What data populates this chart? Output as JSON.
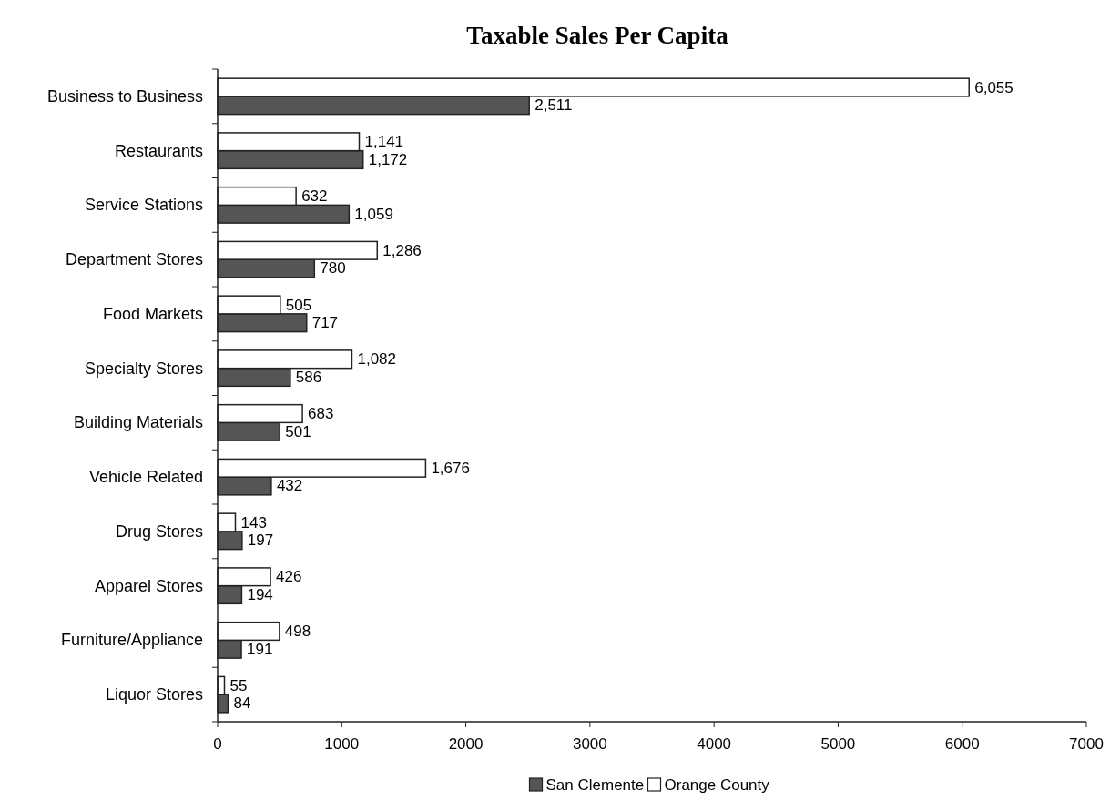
{
  "chart_data": {
    "type": "bar",
    "orientation": "horizontal",
    "title": "Taxable Sales Per Capita",
    "categories": [
      "Business to Business",
      "Restaurants",
      "Service Stations",
      "Department Stores",
      "Food Markets",
      "Specialty Stores",
      "Building Materials",
      "Vehicle Related",
      "Drug Stores",
      "Apparel Stores",
      "Furniture/Appliance",
      "Liquor Stores"
    ],
    "series": [
      {
        "name": "San Clemente",
        "color": "#555555",
        "values": [
          2511,
          1172,
          1059,
          780,
          717,
          586,
          501,
          432,
          197,
          194,
          191,
          84
        ],
        "value_labels": [
          "2,511",
          "1,172",
          "1,059",
          "780",
          "717",
          "586",
          "501",
          "432",
          "197",
          "194",
          "191",
          "84"
        ]
      },
      {
        "name": "Orange County",
        "color": "#ffffff",
        "values": [
          6055,
          1141,
          632,
          1286,
          505,
          1082,
          683,
          1676,
          143,
          426,
          498,
          55
        ],
        "value_labels": [
          "6,055",
          "1,141",
          "632",
          "1,286",
          "505",
          "1,082",
          "683",
          "1,676",
          "143",
          "426",
          "498",
          "55"
        ]
      }
    ],
    "xlim": [
      0,
      7000
    ],
    "xticks": [
      0,
      1000,
      2000,
      3000,
      4000,
      5000,
      6000,
      7000
    ],
    "grid": false,
    "legend": "bottom"
  }
}
